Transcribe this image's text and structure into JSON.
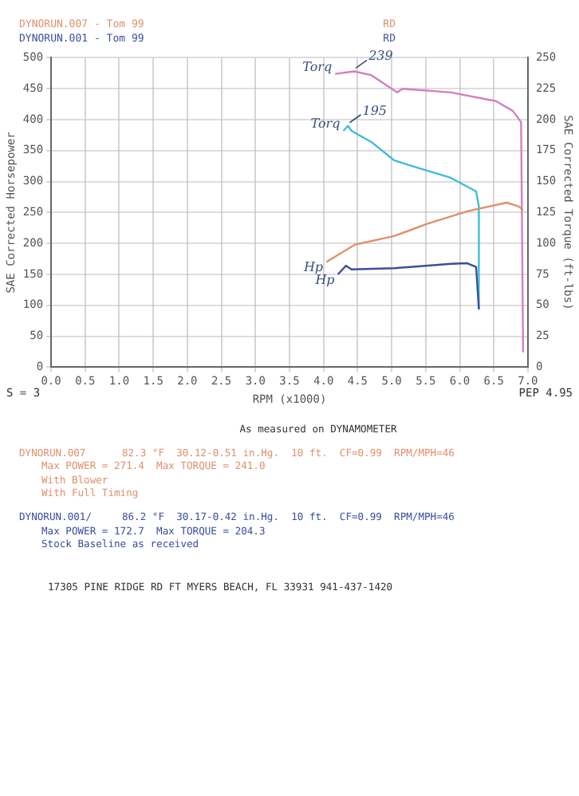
{
  "chart_data": {
    "type": "line",
    "title": "DYNORUN.007 - Tom 99",
    "subtitle": "DYNORUN.001 - Tom 99",
    "xlabel": "RPM (x1000)",
    "ylabel": "SAE Corrected Horsepower",
    "y2label": "SAE Corrected Torque (ft-lbs)",
    "xlim": [
      0,
      7
    ],
    "xticks": [
      {
        "value": 0,
        "label": "0.0"
      },
      {
        "value": 0.5,
        "label": "0.5"
      },
      {
        "value": 1,
        "label": "1.0"
      },
      {
        "value": 1.5,
        "label": "1.5"
      },
      {
        "value": 2,
        "label": "2.0"
      },
      {
        "value": 2.5,
        "label": "2.5"
      },
      {
        "value": 3,
        "label": "3.0"
      },
      {
        "value": 3.5,
        "label": "3.5"
      },
      {
        "value": 4,
        "label": "4.0"
      },
      {
        "value": 4.5,
        "label": "4.5"
      },
      {
        "value": 5,
        "label": "5.0"
      },
      {
        "value": 5.5,
        "label": "5.5"
      },
      {
        "value": 6,
        "label": "6.0"
      },
      {
        "value": 6.5,
        "label": "6.5"
      },
      {
        "value": 7,
        "label": "7.0"
      }
    ],
    "ylim": [
      0,
      500
    ],
    "yticks": [
      0,
      50,
      100,
      150,
      200,
      250,
      300,
      350,
      400,
      450,
      500
    ],
    "y2lim": [
      0,
      250
    ],
    "y2ticks": [
      0,
      25,
      50,
      75,
      100,
      125,
      150,
      175,
      200,
      225,
      250
    ],
    "grid": true,
    "legend": false,
    "marker": "none",
    "line_style": "solid",
    "series": [
      {
        "name": "Hp",
        "color": "#e0906c",
        "x": [
          4.04,
          4.46,
          5.04,
          5.53,
          6.11,
          6.69,
          6.86,
          6.93
        ],
        "values": [
          170,
          198,
          212,
          232,
          252,
          266,
          260,
          254
        ]
      },
      {
        "name": "Torq",
        "color": "#d47fbf",
        "axis": "y2",
        "x": [
          4.17,
          4.45,
          4.7,
          5.08,
          5.16,
          5.87,
          6.53,
          6.78,
          6.9,
          6.93
        ],
        "values": [
          237,
          239,
          236,
          222,
          225,
          222,
          215,
          207,
          198,
          12
        ]
      },
      {
        "name": "Hp",
        "color": "#3a4f9c",
        "x": [
          4.21,
          4.33,
          4.41,
          5.04,
          5.87,
          6.11,
          6.24,
          6.28
        ],
        "values": [
          150,
          164,
          158,
          160,
          167,
          168,
          162,
          94
        ]
      },
      {
        "name": "Torq",
        "color": "#3fbcd6",
        "axis": "y2",
        "x": [
          4.29,
          4.36,
          4.41,
          4.7,
          5.04,
          5.45,
          5.87,
          6.24,
          6.28,
          6.28
        ],
        "values": [
          191,
          195,
          191,
          182,
          167,
          160,
          153,
          142,
          130,
          47
        ]
      }
    ],
    "annotations": [
      "RD",
      "RD",
      "S = 3",
      "PEP 4.95",
      "As measured on DYNAMOMETER",
      "DYNORUN.007      82.3 °F  30.12-0.51 in.Hg.  10 ft.  CF=0.99  RPM/MPH=46",
      "Max POWER = 271.4  Max TORQUE = 241.0",
      "With Blower",
      "With Full Timing",
      "DYNORUN.001/     86.2 °F  30.17-0.42 in.Hg.  10 ft.  CF=0.99  RPM/MPH=46",
      "Max POWER = 172.7  Max TORQUE = 204.3",
      "Stock Baseline as received",
      "17305 PINE RIDGE RD FT MYERS BEACH, FL 33931 941-437-1420",
      {
        "text": "239",
        "x": 4.45,
        "y": 478
      },
      {
        "text": "195",
        "x": 4.36,
        "y": 390
      }
    ]
  }
}
